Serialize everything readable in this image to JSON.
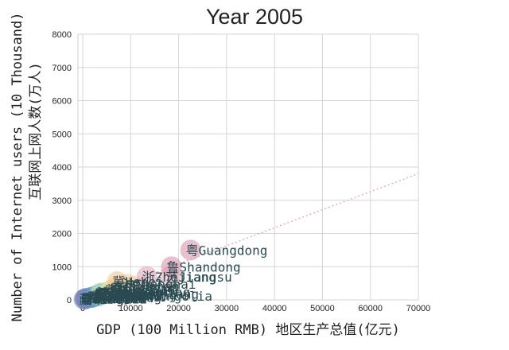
{
  "chart_data": {
    "type": "scatter",
    "title": "Year 2005",
    "xlabel": "GDP (100 Million RMB) 地区生产总值(亿元)",
    "ylabel_line1": "Number of Internet users (10 Thousand)",
    "ylabel_line2": "互联网上网人数(万人)",
    "xlim": [
      -1000,
      70000
    ],
    "ylim": [
      0,
      8000
    ],
    "xticks": [
      0,
      10000,
      20000,
      30000,
      40000,
      50000,
      60000,
      70000
    ],
    "yticks": [
      0,
      1000,
      2000,
      3000,
      4000,
      5000,
      6000,
      7000,
      8000
    ],
    "grid": true,
    "trend_line": {
      "x": [
        0,
        70000
      ],
      "y": [
        0,
        3800
      ],
      "color": "#e8a0b4"
    },
    "points": [
      {
        "x": 22500,
        "y": 1500,
        "label": "粤Guangdong",
        "color": "#d98ca8"
      },
      {
        "x": 18500,
        "y": 1000,
        "label": "鲁Shandong",
        "color": "#d98ca8"
      },
      {
        "x": 13400,
        "y": 700,
        "label": "浙Zhejiang",
        "color": "#e0a0b0"
      },
      {
        "x": 18300,
        "y": 700,
        "label": "苏Jiangsu",
        "color": "#e0a8b0"
      },
      {
        "x": 7200,
        "y": 550,
        "label": "冀Hebei",
        "color": "#f0c090"
      },
      {
        "x": 9200,
        "y": 480,
        "label": "沪Shanghai",
        "color": "#f4d0a0"
      },
      {
        "x": 10500,
        "y": 420,
        "label": "豫Henan",
        "color": "#f2c8a0"
      },
      {
        "x": 7000,
        "y": 380,
        "label": "京Beijing",
        "color": "#f8e0a0"
      },
      {
        "x": 6500,
        "y": 330,
        "label": "川Sichuan",
        "color": "#f4e0a8"
      },
      {
        "x": 6100,
        "y": 300,
        "label": "湘Hunan",
        "color": "#e8e0a8"
      },
      {
        "x": 5600,
        "y": 280,
        "label": "鄂Hubei",
        "color": "#e0dca8"
      },
      {
        "x": 6600,
        "y": 260,
        "label": "闽Fujian",
        "color": "#d8e0b0"
      },
      {
        "x": 8000,
        "y": 240,
        "label": "辽Liaoning",
        "color": "#c8dcb0"
      },
      {
        "x": 4000,
        "y": 200,
        "label": "皖Anhui",
        "color": "#b8d8b4"
      },
      {
        "x": 4100,
        "y": 190,
        "label": "陕Shaanxi",
        "color": "#a8d0b8"
      },
      {
        "x": 3900,
        "y": 210,
        "label": "津Tianjin",
        "color": "#a8d8c0"
      },
      {
        "x": 3400,
        "y": 180,
        "label": "黑Heilongjiang",
        "color": "#a0c8c0"
      },
      {
        "x": 3800,
        "y": 170,
        "label": "桂Guangxi",
        "color": "#98c8c8"
      },
      {
        "x": 3500,
        "y": 160,
        "label": "渝Chongqing",
        "color": "#90c0c8"
      },
      {
        "x": 3700,
        "y": 150,
        "label": "晋Shanxi",
        "color": "#88b8c8"
      },
      {
        "x": 3600,
        "y": 140,
        "label": "赣Jiangxi",
        "color": "#80b4cc"
      },
      {
        "x": 3300,
        "y": 130,
        "label": "滇Yunnan",
        "color": "#78acc8"
      },
      {
        "x": 3000,
        "y": 120,
        "label": "蒙Inner Mongolia",
        "color": "#70a4c8"
      },
      {
        "x": 2700,
        "y": 110,
        "label": "吉Jilin",
        "color": "#6c9cc4"
      },
      {
        "x": 2000,
        "y": 90,
        "label": "新Xinjiang",
        "color": "#6894c0"
      },
      {
        "x": 2000,
        "y": 80,
        "label": "黔Guizhou",
        "color": "#6890c0"
      },
      {
        "x": 1900,
        "y": 70,
        "label": "甘Gansu",
        "color": "#6c8cbc"
      },
      {
        "x": 900,
        "y": 50,
        "label": "琼Hainan",
        "color": "#7088b8"
      },
      {
        "x": 600,
        "y": 40,
        "label": "宁Ningxia",
        "color": "#7484b4"
      },
      {
        "x": 500,
        "y": 30,
        "label": "青Qinghai",
        "color": "#7880b0"
      },
      {
        "x": 250,
        "y": 20,
        "label": "藏Tibet",
        "color": "#7c7cac"
      }
    ]
  }
}
